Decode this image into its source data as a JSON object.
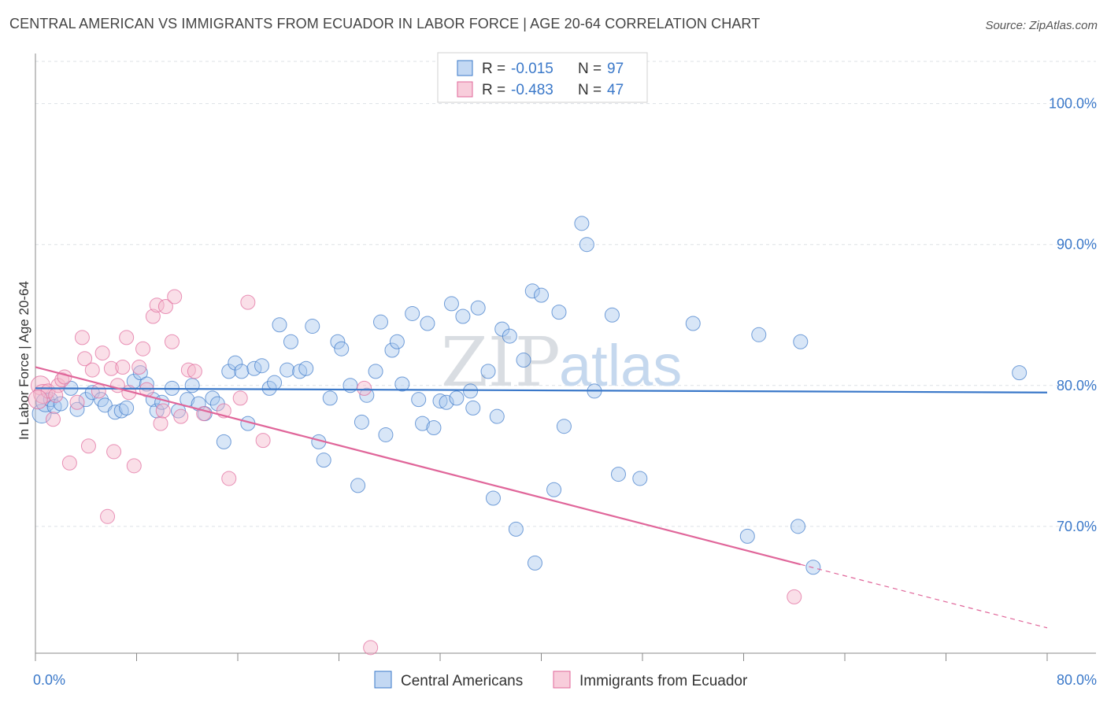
{
  "title": "CENTRAL AMERICAN VS IMMIGRANTS FROM ECUADOR IN LABOR FORCE | AGE 20-64 CORRELATION CHART",
  "source": "Source: ZipAtlas.com",
  "watermark": {
    "zip": "ZIP",
    "atlas": "atlas"
  },
  "colors": {
    "blue": "#3a78c9",
    "blue_fill": "#a9c7ee",
    "pink": "#e0669a",
    "pink_fill": "#f5b8cc"
  },
  "legend": {
    "r_label": "R =",
    "n_label": "N =",
    "rows": [
      {
        "series": "blue",
        "r": "-0.015",
        "n": "97"
      },
      {
        "series": "pink",
        "r": "-0.483",
        "n": "47"
      }
    ]
  },
  "chart_data": {
    "type": "scatter",
    "ylabel": "In Labor Force | Age 20-64",
    "xlim": [
      0,
      80
    ],
    "ylim": [
      61,
      104
    ],
    "x_ticks_labeled": [
      "0.0%",
      "80.0%"
    ],
    "y_ticks": [
      {
        "value": 100,
        "label": "100.0%"
      },
      {
        "value": 90,
        "label": "90.0%"
      },
      {
        "value": 80,
        "label": "80.0%"
      },
      {
        "value": 70,
        "label": "70.0%"
      }
    ],
    "grid": "horizontal dashed",
    "legend_position": "bottom",
    "series": [
      {
        "name": "Central Americans",
        "color": "#3a78c9",
        "trend": {
          "x": [
            0,
            80
          ],
          "y": [
            79.8,
            79.5
          ],
          "dashed_from": null
        },
        "points": [
          [
            0.5,
            78.0
          ],
          [
            0.8,
            78.8
          ],
          [
            1.2,
            79.0
          ],
          [
            1.5,
            78.5
          ],
          [
            2.0,
            78.7
          ],
          [
            2.8,
            79.8
          ],
          [
            3.3,
            78.3
          ],
          [
            4.0,
            79.0
          ],
          [
            4.5,
            79.5
          ],
          [
            5.2,
            79.0
          ],
          [
            5.5,
            78.6
          ],
          [
            6.3,
            78.1
          ],
          [
            6.8,
            78.2
          ],
          [
            7.2,
            78.4
          ],
          [
            7.8,
            80.3
          ],
          [
            8.3,
            80.9
          ],
          [
            8.8,
            80.1
          ],
          [
            9.3,
            79.0
          ],
          [
            9.6,
            78.2
          ],
          [
            10.0,
            78.8
          ],
          [
            10.8,
            79.8
          ],
          [
            11.3,
            78.2
          ],
          [
            12.0,
            79.0
          ],
          [
            12.4,
            80.0
          ],
          [
            12.9,
            78.7
          ],
          [
            13.4,
            78.0
          ],
          [
            14.0,
            79.1
          ],
          [
            14.4,
            78.7
          ],
          [
            14.9,
            76.0
          ],
          [
            15.3,
            81.0
          ],
          [
            15.8,
            81.6
          ],
          [
            16.3,
            81.0
          ],
          [
            16.8,
            77.3
          ],
          [
            17.3,
            81.2
          ],
          [
            17.9,
            81.4
          ],
          [
            18.5,
            79.8
          ],
          [
            18.9,
            80.2
          ],
          [
            19.3,
            84.3
          ],
          [
            19.9,
            81.1
          ],
          [
            20.2,
            83.1
          ],
          [
            20.9,
            81.0
          ],
          [
            21.4,
            81.2
          ],
          [
            21.9,
            84.2
          ],
          [
            22.4,
            76.0
          ],
          [
            22.8,
            74.7
          ],
          [
            23.3,
            79.1
          ],
          [
            23.9,
            83.1
          ],
          [
            24.2,
            82.6
          ],
          [
            24.9,
            80.0
          ],
          [
            25.5,
            72.9
          ],
          [
            25.8,
            77.4
          ],
          [
            26.2,
            79.3
          ],
          [
            26.9,
            81.0
          ],
          [
            27.3,
            84.5
          ],
          [
            27.7,
            76.5
          ],
          [
            28.2,
            82.5
          ],
          [
            28.6,
            83.1
          ],
          [
            29.0,
            80.1
          ],
          [
            29.8,
            85.1
          ],
          [
            30.3,
            79.0
          ],
          [
            30.6,
            77.3
          ],
          [
            31.0,
            84.4
          ],
          [
            31.5,
            77.0
          ],
          [
            32.0,
            78.9
          ],
          [
            32.5,
            78.8
          ],
          [
            32.9,
            85.8
          ],
          [
            33.3,
            79.1
          ],
          [
            33.8,
            84.9
          ],
          [
            34.4,
            79.6
          ],
          [
            34.6,
            78.4
          ],
          [
            35.0,
            85.5
          ],
          [
            35.8,
            81.0
          ],
          [
            36.2,
            72.0
          ],
          [
            36.5,
            77.8
          ],
          [
            36.9,
            84.0
          ],
          [
            37.5,
            83.5
          ],
          [
            38.0,
            69.8
          ],
          [
            38.6,
            81.8
          ],
          [
            39.3,
            86.7
          ],
          [
            39.5,
            67.4
          ],
          [
            40.0,
            86.4
          ],
          [
            41.0,
            72.6
          ],
          [
            41.4,
            85.2
          ],
          [
            41.8,
            77.1
          ],
          [
            43.2,
            91.5
          ],
          [
            43.6,
            90.0
          ],
          [
            44.2,
            79.6
          ],
          [
            45.6,
            85.0
          ],
          [
            46.1,
            73.7
          ],
          [
            47.8,
            73.4
          ],
          [
            52.0,
            84.4
          ],
          [
            56.3,
            69.3
          ],
          [
            57.2,
            83.6
          ],
          [
            60.3,
            70.0
          ],
          [
            60.5,
            83.1
          ],
          [
            61.5,
            67.1
          ],
          [
            77.8,
            80.9
          ]
        ]
      },
      {
        "name": "Immigrants from Ecuador",
        "color": "#e0669a",
        "trend": {
          "x": [
            0,
            60.5
          ],
          "y": [
            81.3,
            67.3
          ],
          "dashed_to": [
            80,
            62.8
          ]
        },
        "points": [
          [
            0.4,
            80.0
          ],
          [
            0.6,
            79.4
          ],
          [
            1.0,
            79.6
          ],
          [
            1.4,
            77.6
          ],
          [
            1.8,
            80.0
          ],
          [
            2.1,
            80.4
          ],
          [
            2.3,
            80.6
          ],
          [
            2.7,
            74.5
          ],
          [
            3.3,
            78.8
          ],
          [
            3.7,
            83.4
          ],
          [
            3.9,
            81.9
          ],
          [
            4.2,
            75.7
          ],
          [
            4.5,
            81.1
          ],
          [
            5.0,
            79.6
          ],
          [
            5.3,
            82.3
          ],
          [
            5.7,
            70.7
          ],
          [
            6.0,
            81.2
          ],
          [
            6.2,
            75.3
          ],
          [
            6.5,
            80.0
          ],
          [
            6.9,
            81.3
          ],
          [
            7.2,
            83.4
          ],
          [
            7.4,
            79.5
          ],
          [
            7.8,
            74.3
          ],
          [
            8.2,
            81.3
          ],
          [
            8.5,
            82.6
          ],
          [
            8.8,
            79.7
          ],
          [
            9.3,
            84.9
          ],
          [
            9.6,
            85.7
          ],
          [
            9.9,
            77.3
          ],
          [
            10.1,
            78.2
          ],
          [
            10.3,
            85.6
          ],
          [
            10.8,
            83.1
          ],
          [
            11.0,
            86.3
          ],
          [
            11.5,
            77.8
          ],
          [
            12.1,
            81.1
          ],
          [
            12.6,
            81.0
          ],
          [
            13.3,
            78.0
          ],
          [
            14.9,
            78.2
          ],
          [
            15.3,
            73.4
          ],
          [
            16.2,
            79.1
          ],
          [
            16.8,
            85.9
          ],
          [
            18.0,
            76.1
          ],
          [
            26.0,
            79.8
          ],
          [
            26.5,
            61.4
          ],
          [
            60.0,
            65.0
          ],
          [
            0.2,
            79.0
          ],
          [
            1.6,
            79.3
          ]
        ]
      }
    ]
  },
  "bottom_legend": [
    {
      "label": "Central Americans",
      "series": "blue"
    },
    {
      "label": "Immigrants from Ecuador",
      "series": "pink"
    }
  ]
}
